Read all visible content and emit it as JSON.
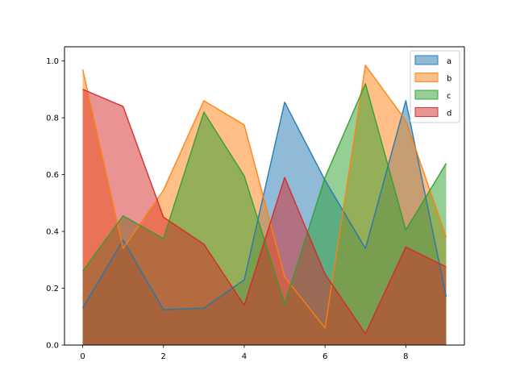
{
  "chart_data": {
    "type": "area",
    "title": "",
    "xlabel": "",
    "ylabel": "",
    "x": [
      0,
      1,
      2,
      3,
      4,
      5,
      6,
      7,
      8,
      9
    ],
    "xlim": [
      -0.45,
      9.45
    ],
    "ylim": [
      0,
      1.05
    ],
    "xticks": [
      0,
      2,
      4,
      6,
      8
    ],
    "yticks": [
      0.0,
      0.2,
      0.4,
      0.6,
      0.8,
      1.0
    ],
    "xtick_labels": [
      "0",
      "2",
      "4",
      "6",
      "8"
    ],
    "ytick_labels": [
      "0.0",
      "0.2",
      "0.4",
      "0.6",
      "0.8",
      "1.0"
    ],
    "stacked": false,
    "alpha": 0.5,
    "grid": false,
    "legend_position": "top-right",
    "series": [
      {
        "name": "a",
        "color": "#1f77b4",
        "values": [
          0.13,
          0.37,
          0.125,
          0.13,
          0.23,
          0.855,
          0.58,
          0.34,
          0.86,
          0.17
        ]
      },
      {
        "name": "b",
        "color": "#ff7f0e",
        "values": [
          0.97,
          0.34,
          0.545,
          0.86,
          0.775,
          0.24,
          0.06,
          0.985,
          0.79,
          0.38
        ]
      },
      {
        "name": "c",
        "color": "#2ca02c",
        "values": [
          0.26,
          0.455,
          0.375,
          0.82,
          0.595,
          0.145,
          0.59,
          0.92,
          0.405,
          0.64
        ]
      },
      {
        "name": "d",
        "color": "#d62728",
        "values": [
          0.9,
          0.84,
          0.45,
          0.355,
          0.14,
          0.59,
          0.25,
          0.04,
          0.345,
          0.275
        ]
      }
    ]
  }
}
